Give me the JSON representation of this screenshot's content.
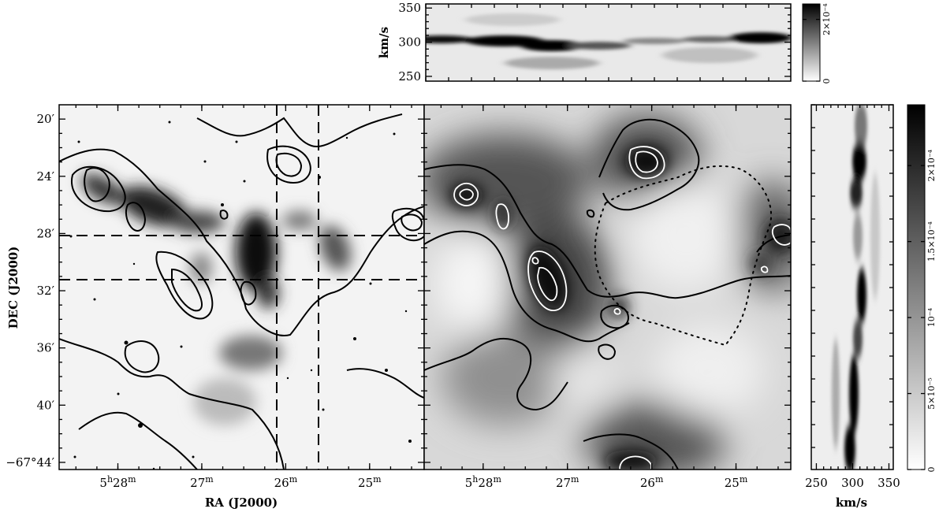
{
  "figure": {
    "colors": {
      "ink": "#000000",
      "paper": "#ffffff",
      "contour_inner": "#ffffff"
    },
    "chart_data": [
      {
        "id": "panel-optical",
        "type": "heatmap",
        "title": "",
        "xlabel": "RA (J2000)",
        "ylabel": "DEC (J2000)",
        "x_ticks": [
          {
            "value": 28,
            "label_main": "5",
            "sup1": "h",
            "mid": "28",
            "sup2": "m"
          },
          {
            "value": 27,
            "label_main": "27",
            "sup1": "",
            "mid": "",
            "sup2": "m"
          },
          {
            "value": 26,
            "label_main": "26",
            "sup1": "",
            "mid": "",
            "sup2": "m"
          },
          {
            "value": 25,
            "label_main": "25",
            "sup1": "",
            "mid": "",
            "sup2": "m"
          }
        ],
        "y_ticks": [
          {
            "value": 20,
            "label": "20",
            "prime": "′",
            "prefix": ""
          },
          {
            "value": 24,
            "label": "24",
            "prime": "′",
            "prefix": ""
          },
          {
            "value": 28,
            "label": "28",
            "prime": "′",
            "prefix": ""
          },
          {
            "value": 32,
            "label": "32",
            "prime": "′",
            "prefix": ""
          },
          {
            "value": 36,
            "label": "36",
            "prime": "′",
            "prefix": ""
          },
          {
            "value": 40,
            "label": "40",
            "prime": "′",
            "prefix": ""
          },
          {
            "value": 44,
            "label": "44",
            "prime": "′",
            "prefix": "−67°"
          }
        ],
        "xlim": [
          28.7,
          24.35
        ],
        "ylim": [
          19,
          44.5
        ],
        "dashed_lines": {
          "dec": [
            28.2,
            31.2
          ],
          "ra": [
            26.18,
            25.68
          ]
        },
        "grid": false
      },
      {
        "id": "panel-hi",
        "type": "heatmap",
        "title": "",
        "xlabel": "",
        "ylabel": "",
        "x_ticks": [
          {
            "value": 28,
            "label_main": "5",
            "sup1": "h",
            "mid": "28",
            "sup2": "m"
          },
          {
            "value": 27,
            "label_main": "27",
            "sup1": "",
            "mid": "",
            "sup2": "m"
          },
          {
            "value": 26,
            "label_main": "26",
            "sup1": "",
            "mid": "",
            "sup2": "m"
          },
          {
            "value": 25,
            "label_main": "25",
            "sup1": "",
            "mid": "",
            "sup2": "m"
          }
        ],
        "xlim": [
          28.7,
          24.35
        ],
        "ylim": [
          19,
          44.5
        ],
        "grid": false
      },
      {
        "id": "panel-top-pv",
        "type": "heatmap",
        "ylabel": "km/s",
        "y_ticks": [
          250,
          300,
          350
        ],
        "ylim": [
          243,
          356
        ],
        "colorbar": {
          "ticks": [
            {
              "value": 0,
              "label": "0"
            },
            {
              "value": 0.0002,
              "label": "2×10⁻⁴"
            }
          ],
          "range": [
            0,
            0.00025
          ]
        }
      },
      {
        "id": "panel-right-pv",
        "type": "heatmap",
        "xlabel": "km/s",
        "x_ticks": [
          250,
          300,
          350
        ],
        "xlim": [
          243,
          356
        ],
        "colorbar": {
          "ticks": [
            {
              "value": 0,
              "label": "0"
            },
            {
              "value": 5e-05,
              "label": "5×10⁻⁵"
            },
            {
              "value": 0.0001,
              "label": "10⁻⁴"
            },
            {
              "value": 0.00015,
              "label": "1.5×10⁻⁴"
            },
            {
              "value": 0.0002,
              "label": "2×10⁻⁴"
            }
          ],
          "range": [
            0,
            0.00024
          ]
        }
      }
    ]
  }
}
